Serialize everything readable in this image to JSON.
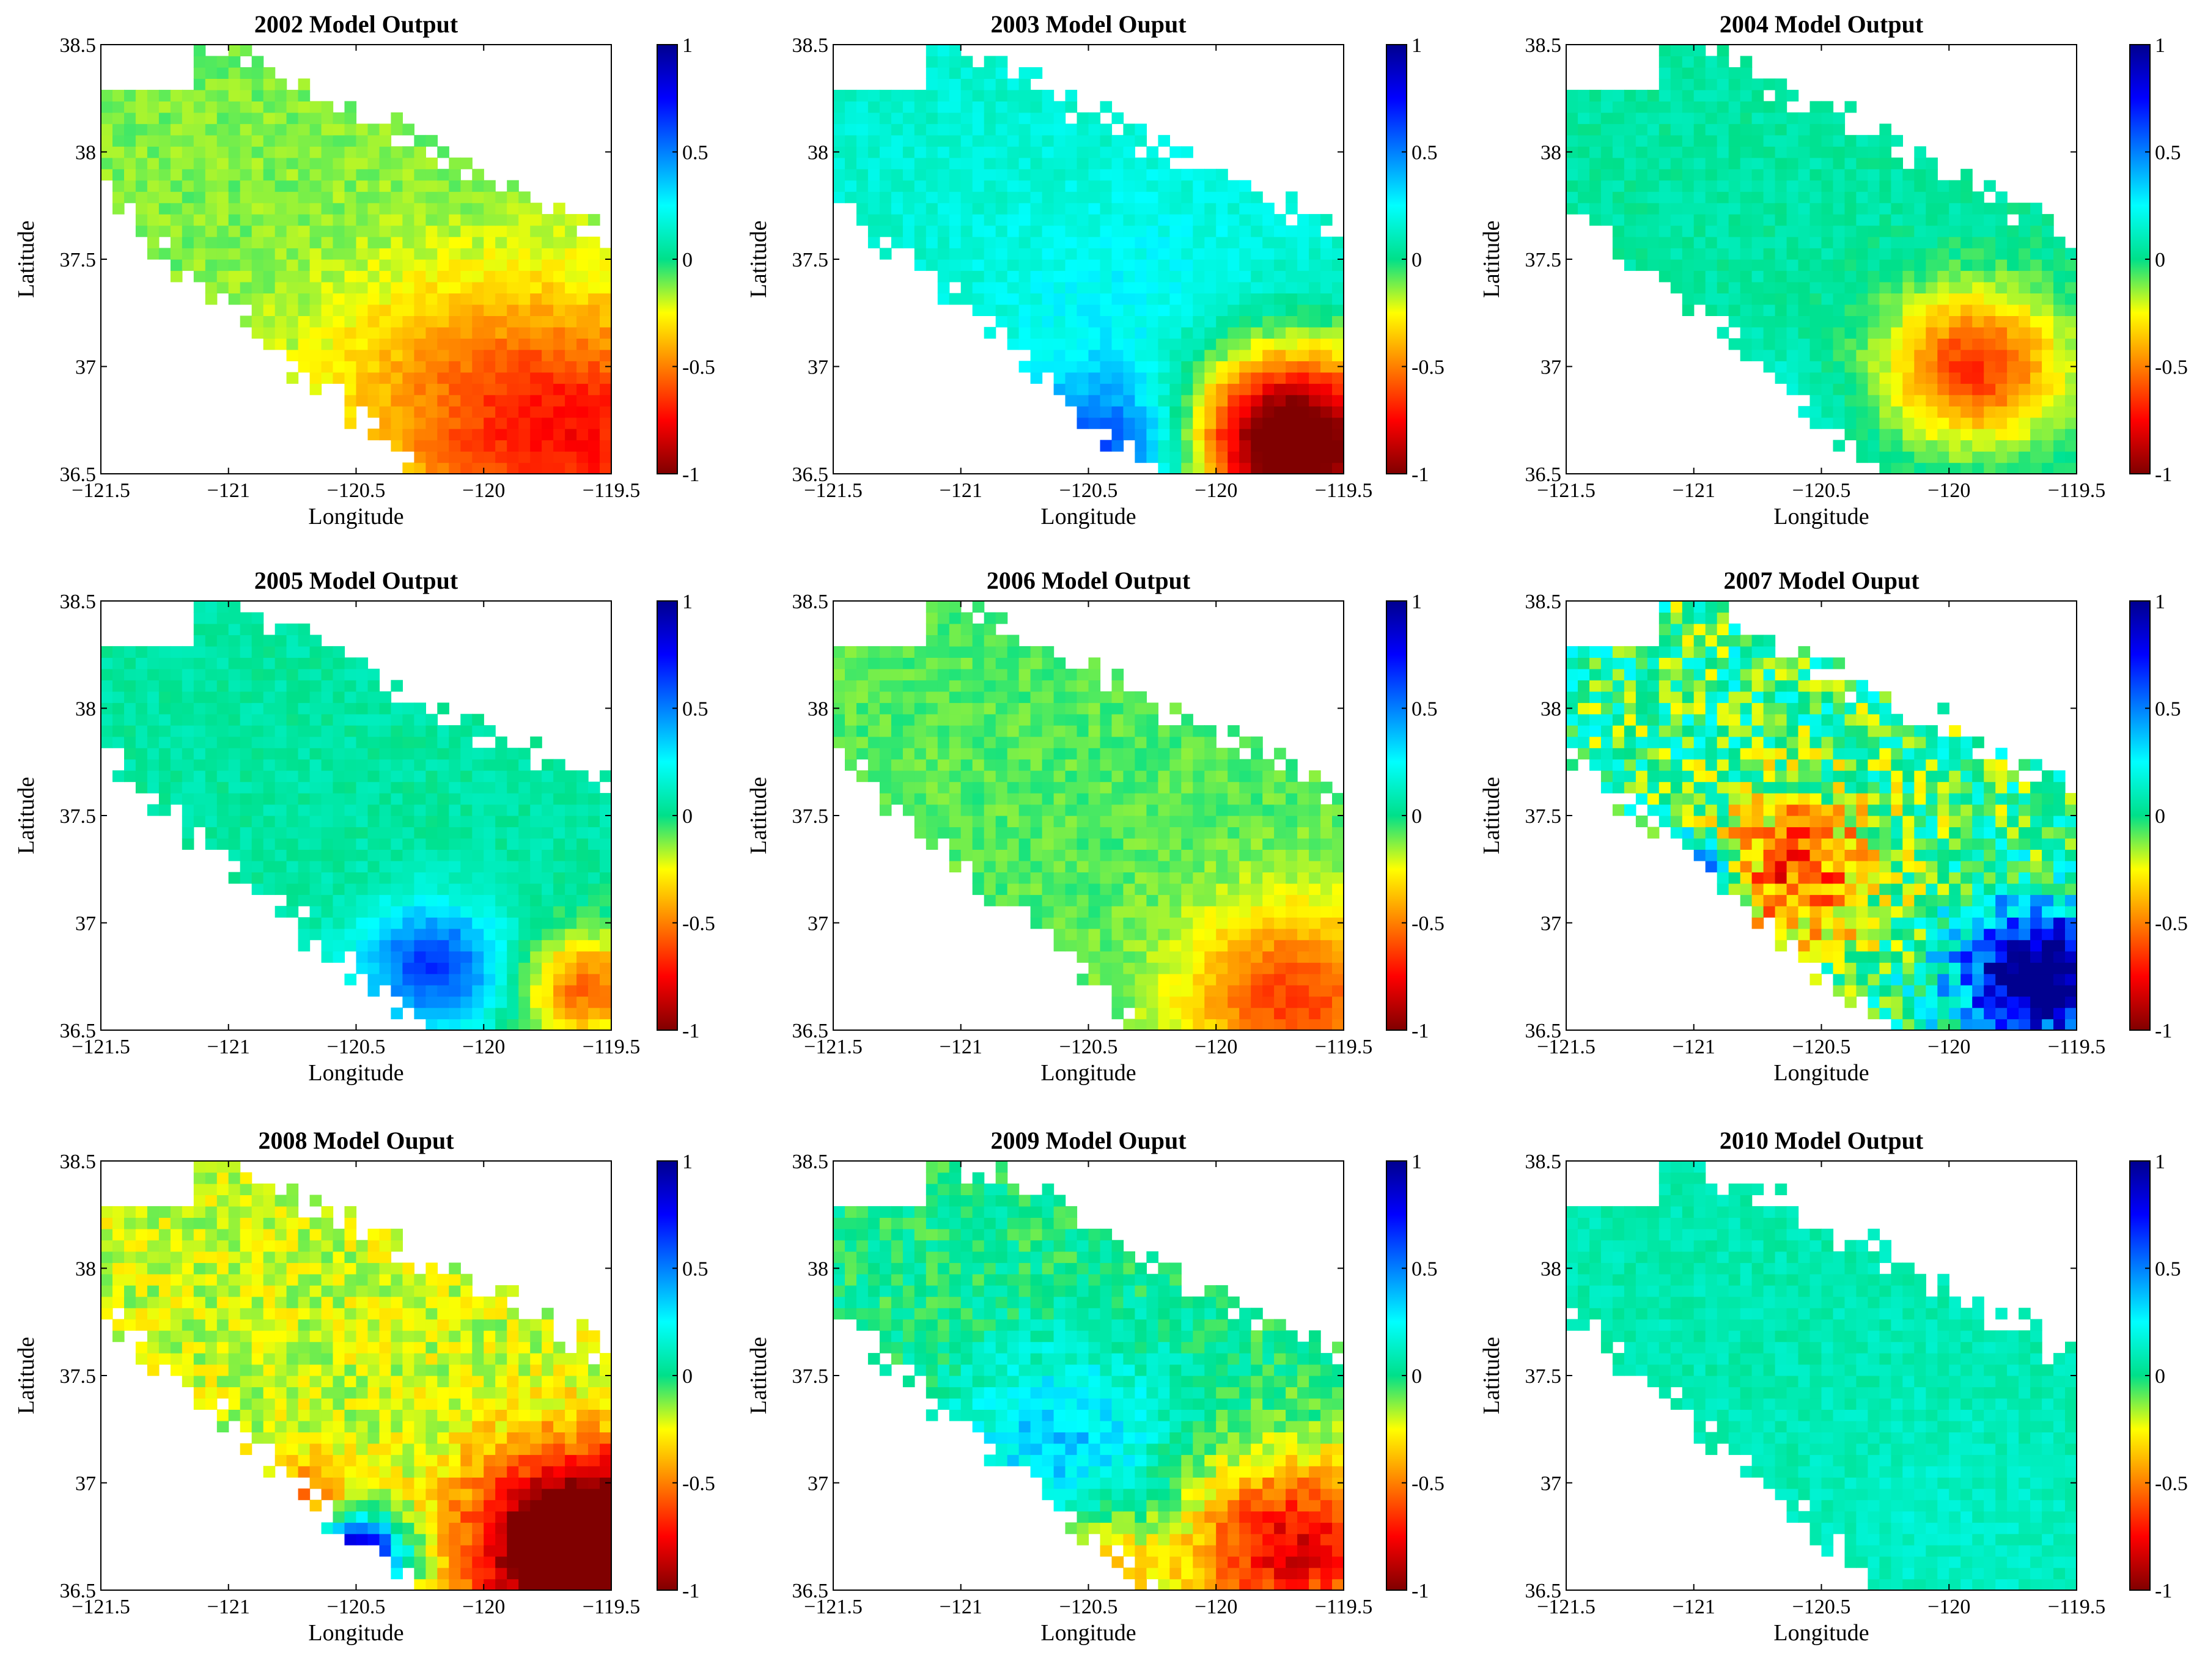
{
  "chart_data": [
    {
      "type": "heatmap",
      "title": "2002 Model Output",
      "xlabel": "Longitude",
      "ylabel": "Latitude",
      "xlim": [
        -121.5,
        -119.5
      ],
      "ylim": [
        36.5,
        38.5
      ],
      "xticks": [
        "-121.5",
        "-121",
        "-120.5",
        "-120",
        "-119.5"
      ],
      "yticks": [
        "38.5",
        "38",
        "37.5",
        "37",
        "36.5"
      ],
      "colorbar": {
        "range": [
          -1,
          1
        ],
        "ticks": [
          "1",
          "0.5",
          "0",
          "-0.5",
          "-1"
        ]
      },
      "pattern": "mostly slightly negative (green-yellow), strongly negative (orange-red) toward south-east"
    },
    {
      "type": "heatmap",
      "title": "2003 Model Ouput",
      "xlabel": "Longitude",
      "ylabel": "Latitude",
      "xlim": [
        -121.5,
        -119.5
      ],
      "ylim": [
        36.5,
        38.5
      ],
      "xticks": [
        "-121.5",
        "-121",
        "-120.5",
        "-120",
        "-119.5"
      ],
      "yticks": [
        "38.5",
        "38",
        "37.5",
        "37",
        "36.5"
      ],
      "colorbar": {
        "range": [
          -1,
          1
        ],
        "ticks": [
          "1",
          "0.5",
          "0",
          "-0.5",
          "-1"
        ]
      },
      "pattern": "positive (cyan-blue) in south-west, near -1 (dark red) in south-east corner"
    },
    {
      "type": "heatmap",
      "title": "2004 Model Output",
      "xlabel": "Longitude",
      "ylabel": "Latitude",
      "xlim": [
        -121.5,
        -119.5
      ],
      "ylim": [
        36.5,
        38.5
      ],
      "xticks": [
        "-121.5",
        "-121",
        "-120.5",
        "-120",
        "-119.5"
      ],
      "yticks": [
        "38.5",
        "38",
        "37.5",
        "37",
        "36.5"
      ],
      "colorbar": {
        "range": [
          -1,
          1
        ],
        "ticks": [
          "1",
          "0.5",
          "0",
          "-0.5",
          "-1"
        ]
      },
      "pattern": "near zero overall, negative (red) band along north-east edge of south part"
    },
    {
      "type": "heatmap",
      "title": "2005 Model Output",
      "xlabel": "Longitude",
      "ylabel": "Latitude",
      "xlim": [
        -121.5,
        -119.5
      ],
      "ylim": [
        36.5,
        38.5
      ],
      "xticks": [
        "-121.5",
        "-121",
        "-120.5",
        "-120",
        "-119.5"
      ],
      "yticks": [
        "38.5",
        "38",
        "37.5",
        "37",
        "36.5"
      ],
      "colorbar": {
        "range": [
          -1,
          1
        ],
        "ticks": [
          "1",
          "0.5",
          "0",
          "-0.5",
          "-1"
        ]
      },
      "pattern": "near zero, positive (blue) patch around -120.2/36.8, negative in far south-east"
    },
    {
      "type": "heatmap",
      "title": "2006 Model Output",
      "xlabel": "Longitude",
      "ylabel": "Latitude",
      "xlim": [
        -121.5,
        -119.5
      ],
      "ylim": [
        36.5,
        38.5
      ],
      "xticks": [
        "-121.5",
        "-121",
        "-120.5",
        "-120",
        "-119.5"
      ],
      "yticks": [
        "38.5",
        "38",
        "37.5",
        "37",
        "36.5"
      ],
      "colorbar": {
        "range": [
          -1,
          1
        ],
        "ticks": [
          "1",
          "0.5",
          "0",
          "-0.5",
          "-1"
        ]
      },
      "pattern": "slightly negative overall, more negative toward south-east"
    },
    {
      "type": "heatmap",
      "title": "2007 Model Ouput",
      "xlabel": "Longitude",
      "ylabel": "Latitude",
      "xlim": [
        -121.5,
        -119.5
      ],
      "ylim": [
        36.5,
        38.5
      ],
      "xticks": [
        "-121.5",
        "-121",
        "-120.5",
        "-120",
        "-119.5"
      ],
      "yticks": [
        "38.5",
        "38",
        "37.5",
        "37",
        "36.5"
      ],
      "colorbar": {
        "range": [
          -1,
          1
        ],
        "ticks": [
          "1",
          "0.5",
          "0",
          "-0.5",
          "-1"
        ]
      },
      "pattern": "highly variable; strong positive (dark blue) in west strip and south-east block, negative core near -120.6/37.3"
    },
    {
      "type": "heatmap",
      "title": "2008 Model Ouput",
      "xlabel": "Longitude",
      "ylabel": "Latitude",
      "xlim": [
        -121.5,
        -119.5
      ],
      "ylim": [
        36.5,
        38.5
      ],
      "xticks": [
        "-121.5",
        "-121",
        "-120.5",
        "-120",
        "-119.5"
      ],
      "yticks": [
        "38.5",
        "38",
        "37.5",
        "37",
        "36.5"
      ],
      "colorbar": {
        "range": [
          -1,
          1
        ],
        "ticks": [
          "1",
          "0.5",
          "0",
          "-0.5",
          "-1"
        ]
      },
      "pattern": "mostly slightly negative (yellow), strong positive (dark blue) near -120.5/36.6, near -1 in south-east"
    },
    {
      "type": "heatmap",
      "title": "2009 Model Ouput",
      "xlabel": "Longitude",
      "ylabel": "Latitude",
      "xlim": [
        -121.5,
        -119.5
      ],
      "ylim": [
        36.5,
        38.5
      ],
      "xticks": [
        "-121.5",
        "-121",
        "-120.5",
        "-120",
        "-119.5"
      ],
      "yticks": [
        "38.5",
        "38",
        "37.5",
        "37",
        "36.5"
      ],
      "colorbar": {
        "range": [
          -1,
          1
        ],
        "ticks": [
          "1",
          "0.5",
          "0",
          "-0.5",
          "-1"
        ]
      },
      "pattern": "positive (cyan) centre near -120.6/37.2, strongly negative rim to the south and south-east"
    },
    {
      "type": "heatmap",
      "title": "2010 Model Output",
      "xlabel": "Longitude",
      "ylabel": "Latitude",
      "xlim": [
        -121.5,
        -119.5
      ],
      "ylim": [
        36.5,
        38.5
      ],
      "xticks": [
        "-121.5",
        "-121",
        "-120.5",
        "-120",
        "-119.5"
      ],
      "yticks": [
        "38.5",
        "38",
        "37.5",
        "37",
        "36.5"
      ],
      "colorbar": {
        "range": [
          -1,
          1
        ],
        "ticks": [
          "1",
          "0.5",
          "0",
          "-0.5",
          "-1"
        ]
      },
      "pattern": "near zero to slightly positive (green-cyan) everywhere"
    }
  ]
}
